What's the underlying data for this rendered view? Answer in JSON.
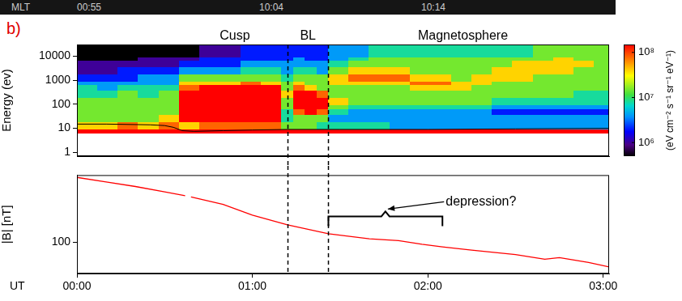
{
  "panel_label": "b)",
  "header": [
    "MLT",
    "00:55",
    "10:04",
    "10:14"
  ],
  "boundaries": [
    72,
    86
  ],
  "chart_data": [
    {
      "type": "heatmap",
      "ylabel": "Energy (ev)",
      "log": "y",
      "grid": false,
      "tick_labels": "y",
      "xlim": [
        0,
        182
      ],
      "ylim": [
        0.7,
        30000
      ],
      "yticks": [
        1,
        10,
        100,
        1000,
        10000
      ],
      "time_edges": [
        0,
        7,
        14,
        21,
        28,
        35,
        42,
        49,
        56,
        63,
        70,
        74,
        78,
        82,
        86,
        93,
        100,
        107,
        114,
        121,
        128,
        135,
        142,
        149,
        156,
        163,
        170,
        177,
        182
      ],
      "energy_edges": [
        7,
        10,
        20,
        40,
        70,
        100,
        200,
        400,
        700,
        1000,
        2000,
        4000,
        7000,
        10000,
        30000
      ],
      "cells": [
        [
          200000000.0,
          40000000.0,
          15000000.0,
          15000000.0,
          15000000.0,
          15000000.0,
          8000000.0,
          8000000.0,
          4000000.0,
          2000000.0,
          1000000.0,
          1000000.0,
          400000.0,
          400000.0
        ],
        [
          200000000.0,
          40000000.0,
          15000000.0,
          15000000.0,
          15000000.0,
          15000000.0,
          8000000.0,
          4000000.0,
          4000000.0,
          2000000.0,
          1000000.0,
          1000000.0,
          400000.0,
          400000.0
        ],
        [
          200000000.0,
          80000000.0,
          15000000.0,
          15000000.0,
          15000000.0,
          15000000.0,
          15000000.0,
          8000000.0,
          4000000.0,
          2000000.0,
          2000000.0,
          1000000.0,
          400000.0,
          400000.0
        ],
        [
          200000000.0,
          40000000.0,
          15000000.0,
          15000000.0,
          15000000.0,
          15000000.0,
          8000000.0,
          8000000.0,
          4000000.0,
          4000000.0,
          2000000.0,
          1000000.0,
          1000000.0,
          400000.0
        ],
        [
          200000000.0,
          80000000.0,
          40000000.0,
          15000000.0,
          15000000.0,
          15000000.0,
          15000000.0,
          8000000.0,
          4000000.0,
          4000000.0,
          2000000.0,
          1000000.0,
          1000000.0,
          400000.0
        ],
        [
          200000000.0,
          40000000.0,
          200000000.0,
          200000000.0,
          200000000.0,
          200000000.0,
          200000000.0,
          80000000.0,
          40000000.0,
          15000000.0,
          4000000.0,
          2000000.0,
          1000000.0,
          400000.0
        ],
        [
          200000000.0,
          80000000.0,
          200000000.0,
          200000000.0,
          200000000.0,
          200000000.0,
          200000000.0,
          200000000.0,
          40000000.0,
          15000000.0,
          4000000.0,
          2000000.0,
          2000000.0,
          1000000.0
        ],
        [
          200000000.0,
          80000000.0,
          200000000.0,
          200000000.0,
          200000000.0,
          200000000.0,
          200000000.0,
          200000000.0,
          40000000.0,
          15000000.0,
          4000000.0,
          2000000.0,
          2000000.0,
          1000000.0
        ],
        [
          200000000.0,
          80000000.0,
          200000000.0,
          200000000.0,
          200000000.0,
          200000000.0,
          200000000.0,
          200000000.0,
          80000000.0,
          15000000.0,
          8000000.0,
          4000000.0,
          2000000.0,
          2000000.0
        ],
        [
          200000000.0,
          80000000.0,
          200000000.0,
          200000000.0,
          200000000.0,
          200000000.0,
          200000000.0,
          200000000.0,
          40000000.0,
          15000000.0,
          8000000.0,
          4000000.0,
          2000000.0,
          2000000.0
        ],
        [
          200000000.0,
          15000000.0,
          8000000.0,
          8000000.0,
          15000000.0,
          15000000.0,
          40000000.0,
          15000000.0,
          15000000.0,
          8000000.0,
          4000000.0,
          4000000.0,
          2000000.0,
          2000000.0
        ],
        [
          200000000.0,
          15000000.0,
          15000000.0,
          80000000.0,
          200000000.0,
          200000000.0,
          200000000.0,
          80000000.0,
          40000000.0,
          15000000.0,
          8000000.0,
          4000000.0,
          4000000.0,
          2000000.0
        ],
        [
          200000000.0,
          15000000.0,
          15000000.0,
          200000000.0,
          200000000.0,
          200000000.0,
          200000000.0,
          40000000.0,
          15000000.0,
          15000000.0,
          8000000.0,
          4000000.0,
          2000000.0,
          2000000.0
        ],
        [
          200000000.0,
          8000000.0,
          15000000.0,
          80000000.0,
          200000000.0,
          200000000.0,
          80000000.0,
          15000000.0,
          15000000.0,
          15000000.0,
          4000000.0,
          4000000.0,
          2000000.0,
          2000000.0
        ],
        [
          200000000.0,
          8000000.0,
          4000000.0,
          8000000.0,
          15000000.0,
          40000000.0,
          15000000.0,
          15000000.0,
          40000000.0,
          40000000.0,
          15000000.0,
          8000000.0,
          4000000.0,
          4000000.0
        ],
        [
          200000000.0,
          8000000.0,
          4000000.0,
          4000000.0,
          8000000.0,
          15000000.0,
          15000000.0,
          15000000.0,
          40000000.0,
          80000000.0,
          40000000.0,
          15000000.0,
          8000000.0,
          4000000.0
        ],
        [
          200000000.0,
          8000000.0,
          4000000.0,
          4000000.0,
          8000000.0,
          15000000.0,
          15000000.0,
          15000000.0,
          40000000.0,
          80000000.0,
          40000000.0,
          15000000.0,
          15000000.0,
          8000000.0
        ],
        [
          200000000.0,
          4000000.0,
          4000000.0,
          4000000.0,
          8000000.0,
          15000000.0,
          15000000.0,
          15000000.0,
          40000000.0,
          80000000.0,
          40000000.0,
          15000000.0,
          15000000.0,
          8000000.0
        ],
        [
          200000000.0,
          4000000.0,
          4000000.0,
          4000000.0,
          8000000.0,
          15000000.0,
          15000000.0,
          40000000.0,
          80000000.0,
          40000000.0,
          15000000.0,
          15000000.0,
          15000000.0,
          8000000.0
        ],
        [
          200000000.0,
          4000000.0,
          4000000.0,
          4000000.0,
          8000000.0,
          15000000.0,
          15000000.0,
          40000000.0,
          80000000.0,
          40000000.0,
          15000000.0,
          15000000.0,
          15000000.0,
          8000000.0
        ],
        [
          200000000.0,
          4000000.0,
          4000000.0,
          4000000.0,
          8000000.0,
          15000000.0,
          15000000.0,
          40000000.0,
          40000000.0,
          15000000.0,
          15000000.0,
          15000000.0,
          15000000.0,
          8000000.0
        ],
        [
          200000000.0,
          4000000.0,
          4000000.0,
          4000000.0,
          8000000.0,
          15000000.0,
          15000000.0,
          15000000.0,
          40000000.0,
          40000000.0,
          15000000.0,
          15000000.0,
          15000000.0,
          8000000.0
        ],
        [
          200000000.0,
          4000000.0,
          4000000.0,
          2000000.0,
          4000000.0,
          8000000.0,
          15000000.0,
          15000000.0,
          15000000.0,
          40000000.0,
          40000000.0,
          15000000.0,
          15000000.0,
          8000000.0
        ],
        [
          200000000.0,
          4000000.0,
          4000000.0,
          2000000.0,
          4000000.0,
          8000000.0,
          15000000.0,
          15000000.0,
          15000000.0,
          40000000.0,
          40000000.0,
          40000000.0,
          15000000.0,
          8000000.0
        ],
        [
          200000000.0,
          4000000.0,
          4000000.0,
          2000000.0,
          4000000.0,
          8000000.0,
          15000000.0,
          15000000.0,
          15000000.0,
          15000000.0,
          40000000.0,
          40000000.0,
          15000000.0,
          15000000.0
        ],
        [
          200000000.0,
          4000000.0,
          4000000.0,
          2000000.0,
          4000000.0,
          8000000.0,
          15000000.0,
          15000000.0,
          15000000.0,
          15000000.0,
          40000000.0,
          40000000.0,
          40000000.0,
          15000000.0
        ],
        [
          200000000.0,
          4000000.0,
          4000000.0,
          2000000.0,
          4000000.0,
          8000000.0,
          8000000.0,
          15000000.0,
          15000000.0,
          15000000.0,
          15000000.0,
          40000000.0,
          15000000.0,
          15000000.0
        ],
        [
          200000000.0,
          4000000.0,
          4000000.0,
          2000000.0,
          4000000.0,
          8000000.0,
          8000000.0,
          15000000.0,
          15000000.0,
          15000000.0,
          15000000.0,
          15000000.0,
          15000000.0,
          15000000.0
        ]
      ],
      "colorbar_lim": [
        500000.0,
        150000000.0
      ],
      "colorbar_ticks": [
        {
          "value": 1000000.0,
          "label": "10⁶"
        },
        {
          "value": 10000000.0,
          "label": "10⁷"
        },
        {
          "value": 100000000.0,
          "label": "10⁸"
        }
      ],
      "colorbar_label": "(eV cm⁻² s⁻¹ sr⁻¹ eV⁻¹)",
      "series": [
        {
          "color": "#000000",
          "x": [
            0,
            10,
            25,
            30,
            33,
            36,
            40,
            50,
            60,
            72,
            90,
            120,
            150,
            182
          ],
          "values": [
            15,
            15,
            14,
            13,
            11,
            8,
            7.5,
            8,
            8.5,
            9,
            9,
            9,
            9.5,
            10
          ]
        }
      ],
      "annotations": [
        {
          "text": "Cusp",
          "x": 54
        },
        {
          "text": "BL",
          "x": 79
        },
        {
          "text": "Magnetosphere",
          "x": 132
        }
      ]
    },
    {
      "type": "line",
      "ylabel": "|B| [nT]",
      "xlabel": "UT",
      "log": "y",
      "grid": false,
      "xlim": [
        0,
        182
      ],
      "ylim": [
        60,
        300
      ],
      "yticks": [
        100
      ],
      "xticks": [
        {
          "value": 0,
          "label": "00:00"
        },
        {
          "value": 60,
          "label": "01:00"
        },
        {
          "value": 120,
          "label": "02:00"
        },
        {
          "value": 180,
          "label": "03:00"
        }
      ],
      "series": [
        {
          "color": "#ff0000",
          "x": [
            0,
            10,
            20,
            30,
            37,
            37.5,
            39,
            50,
            60,
            72,
            86,
            100,
            110,
            118,
            125,
            135,
            150,
            160,
            165,
            175,
            182
          ],
          "values": [
            289,
            268,
            249,
            228,
            214,
            null,
            210,
            186,
            156,
            133,
            115,
            106,
            103,
            97,
            93,
            88,
            82,
            76,
            78,
            72,
            67
          ]
        }
      ],
      "annotations": [
        {
          "text": "depression?",
          "span": [
            86,
            125
          ]
        }
      ]
    }
  ]
}
